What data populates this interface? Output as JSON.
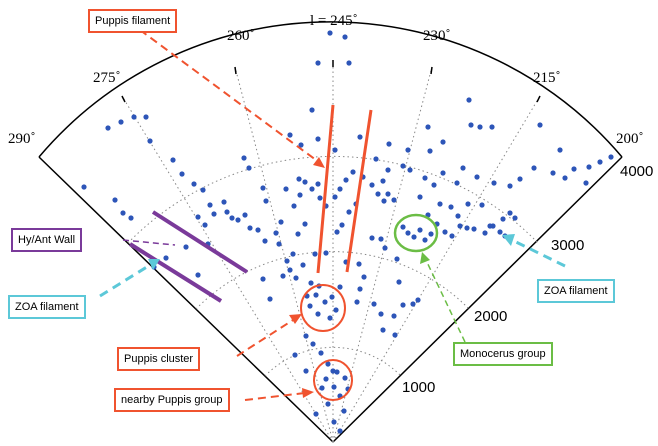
{
  "axis_labels": {
    "l290": "290˚",
    "l275": "275˚",
    "l260": "260˚",
    "l245": "l = 245˚",
    "l230": "230˚",
    "l215": "215˚",
    "l200": "200˚"
  },
  "radius_labels": {
    "r1000": "1000",
    "r2000": "2000",
    "r3000": "3000",
    "r4000": "4000"
  },
  "annotations": {
    "puppis_filament": "Puppis filament",
    "hy_ant_wall": "Hy/Ant Wall",
    "zoa_filament_left": "ZOA filament",
    "zoa_filament_right": "ZOA filament",
    "puppis_cluster": "Puppis cluster",
    "nearby_puppis_group": "nearby Puppis group",
    "monocerus_group": "Monocerus group"
  },
  "colors": {
    "points": "#2d55b8",
    "red": "#f0532f",
    "purple": "#7a3a9a",
    "cyan": "#5cc8d8",
    "green": "#6bbd45",
    "grid": "#888888"
  }
}
